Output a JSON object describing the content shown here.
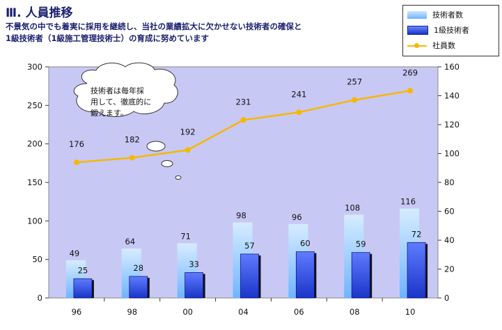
{
  "title": "Ⅲ. 人員推移",
  "subtitle_line1": "不景気の中でも着実に採用を継続し、当社の業績拡大に欠かせない技術者の確保と",
  "subtitle_line2": "1級技術者（1級施工管理技術士）の育成に努めています",
  "bubble": [
    "技術者は毎年採",
    "用して、徹底的に",
    "鍛えます。"
  ],
  "colors": {
    "plot_bg": "#c8c8f5",
    "series_a": "#6fb4ff",
    "series_b": "#1a35c8",
    "line": "#f5b800"
  },
  "chart_data": {
    "type": "bar",
    "categories": [
      "96",
      "98",
      "00",
      "04",
      "06",
      "08",
      "10"
    ],
    "series": [
      {
        "name": "技術者数",
        "type": "bar",
        "axis": "left",
        "values": [
          49,
          64,
          71,
          98,
          96,
          108,
          116
        ]
      },
      {
        "name": "1級技術者",
        "type": "bar",
        "axis": "left",
        "values": [
          25,
          28,
          33,
          57,
          60,
          59,
          72
        ]
      },
      {
        "name": "社員数",
        "type": "line",
        "axis": "right",
        "values": [
          176,
          182,
          192,
          231,
          241,
          257,
          269
        ]
      }
    ],
    "left_ticks": [
      "0",
      "50",
      "100",
      "150",
      "200",
      "250",
      "300"
    ],
    "right_ticks": [
      "0",
      "20",
      "40",
      "60",
      "80",
      "100",
      "120",
      "140",
      "160"
    ],
    "ylim_left": [
      0,
      300
    ],
    "ylim_right": [
      0,
      160
    ],
    "legend_position": "top-right",
    "grid": false
  }
}
